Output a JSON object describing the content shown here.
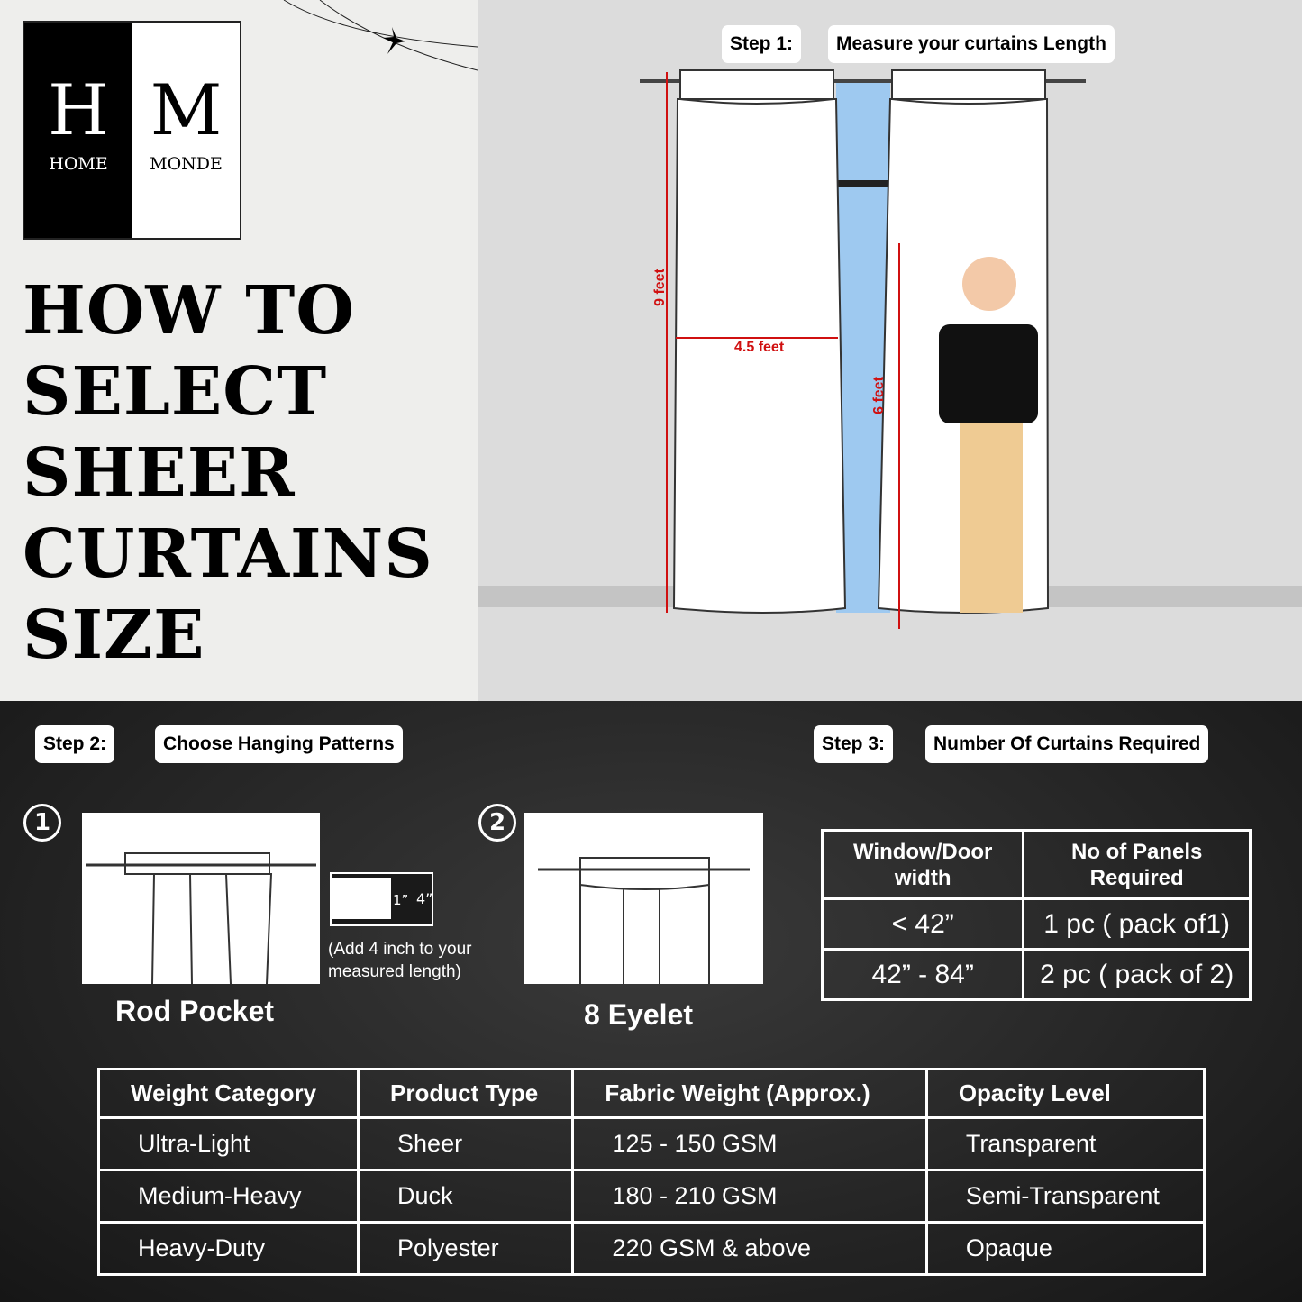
{
  "brand": {
    "monogram_left": "H",
    "monogram_right": "M",
    "word_left": "HOME",
    "word_right": "MONDE"
  },
  "title_lines": [
    "HOW TO",
    "SELECT",
    "SHEER",
    "CURTAINS",
    "SIZE"
  ],
  "step1": {
    "label": "Step 1:",
    "text": "Measure your curtains Length",
    "height": "9 feet",
    "width": "4.5 feet",
    "person_height": "6 feet"
  },
  "step2": {
    "label": "Step 2:",
    "text": "Choose Hanging Patterns",
    "options": [
      {
        "number": "1",
        "name": "Rod Pocket",
        "detail_small": "1”",
        "detail_large": "4”",
        "note_line1": "(Add 4 inch to your",
        "note_line2": "measured length)"
      },
      {
        "number": "2",
        "name": "8 Eyelet"
      }
    ]
  },
  "step3": {
    "label": "Step 3:",
    "text": "Number Of Curtains Required",
    "headers": [
      "Window/Door width",
      "No of Panels Required"
    ],
    "rows": [
      [
        "< 42”",
        "1 pc ( pack of1)"
      ],
      [
        "42” - 84”",
        "2 pc ( pack of 2)"
      ]
    ]
  },
  "weights": {
    "headers": [
      "Weight Category",
      "Product Type",
      "Fabric Weight (Approx.)",
      "Opacity Level"
    ],
    "rows": [
      [
        "Ultra-Light",
        "Sheer",
        "125 - 150 GSM",
        "Transparent"
      ],
      [
        "Medium-Heavy",
        "Duck",
        "180 - 210 GSM",
        "Semi-Transparent"
      ],
      [
        "Heavy-Duty",
        "Polyester",
        "220  GSM & above",
        "Opaque"
      ]
    ]
  },
  "colors": {
    "measure_red": "#d01010",
    "window_blue": "#9ec9f0"
  }
}
